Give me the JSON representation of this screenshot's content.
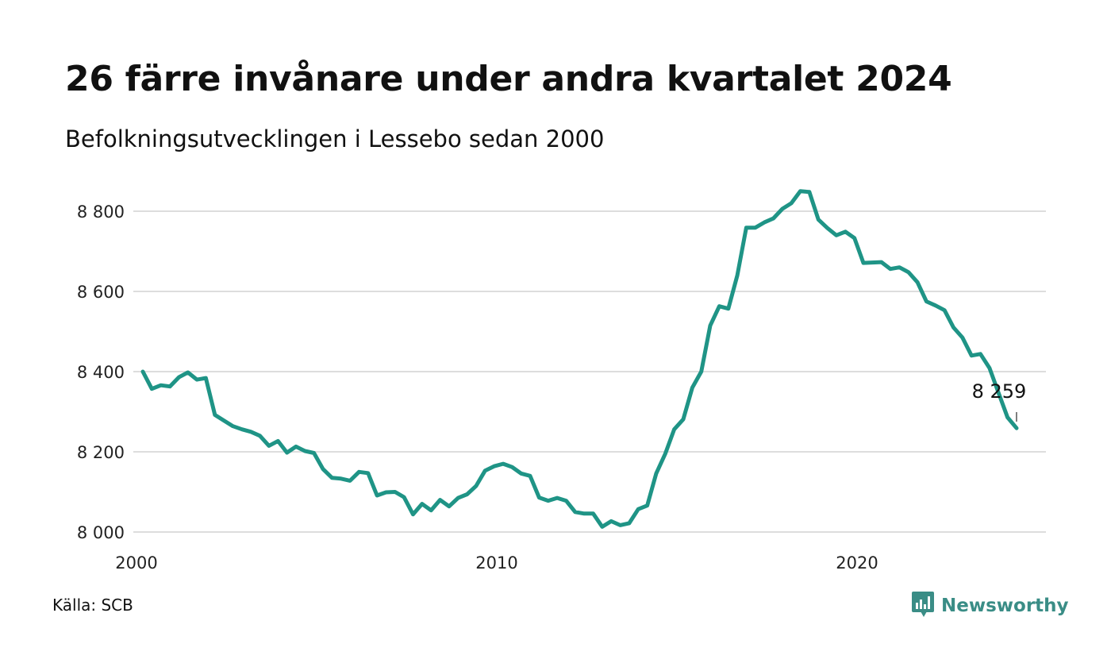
{
  "header": {
    "title": "26 färre invånare under andra kvartalet 2024",
    "subtitle": "Befolkningsutvecklingen i Lessebo sedan 2000"
  },
  "footer": {
    "source": "Källa: SCB",
    "brand": "Newsworthy",
    "brand_icon": "bar-chart-speech-icon"
  },
  "colors": {
    "line": "#1f9486",
    "grid": "#dddddd",
    "brand": "#3a8d86"
  },
  "chart_data": {
    "type": "line",
    "title": "26 färre invånare under andra kvartalet 2024",
    "subtitle": "Befolkningsutvecklingen i Lessebo sedan 2000",
    "xlabel": "",
    "ylabel": "",
    "x_ticks": [
      "2000",
      "2010",
      "2020"
    ],
    "y_ticks": [
      "8 000",
      "8 200",
      "8 400",
      "8 600",
      "8 800"
    ],
    "ylim": [
      8000,
      8850
    ],
    "xlim": [
      2000.0,
      2024.25
    ],
    "grid": true,
    "annotation": {
      "x": 2024.25,
      "value": 8259,
      "label": "8 259"
    },
    "x": [
      2000.0,
      2000.25,
      2000.5,
      2000.75,
      2001.0,
      2001.25,
      2001.5,
      2001.75,
      2002.0,
      2002.25,
      2002.5,
      2002.75,
      2003.0,
      2003.25,
      2003.5,
      2003.75,
      2004.0,
      2004.25,
      2004.5,
      2004.75,
      2005.0,
      2005.25,
      2005.5,
      2005.75,
      2006.0,
      2006.25,
      2006.5,
      2006.75,
      2007.0,
      2007.25,
      2007.5,
      2007.75,
      2008.0,
      2008.25,
      2008.5,
      2008.75,
      2009.0,
      2009.25,
      2009.5,
      2009.75,
      2010.0,
      2010.25,
      2010.5,
      2010.75,
      2011.0,
      2011.25,
      2011.5,
      2011.75,
      2012.0,
      2012.25,
      2012.5,
      2012.75,
      2013.0,
      2013.25,
      2013.5,
      2013.75,
      2014.0,
      2014.25,
      2014.5,
      2014.75,
      2015.0,
      2015.25,
      2015.5,
      2015.75,
      2016.0,
      2016.25,
      2016.5,
      2016.75,
      2017.0,
      2017.25,
      2017.5,
      2017.75,
      2018.0,
      2018.25,
      2018.5,
      2018.75,
      2019.0,
      2019.25,
      2019.5,
      2019.75,
      2020.0,
      2020.25,
      2020.5,
      2020.75,
      2021.0,
      2021.25,
      2021.5,
      2021.75,
      2022.0,
      2022.25,
      2022.5,
      2022.75,
      2023.0,
      2023.25,
      2023.5,
      2023.75,
      2024.0,
      2024.25
    ],
    "series": [
      {
        "values": [
          8400,
          8357,
          8366,
          8363,
          8386,
          8398,
          8380,
          8384,
          8292,
          8278,
          8264,
          8256,
          8250,
          8240,
          8215,
          8227,
          8198,
          8213,
          8202,
          8197,
          8157,
          8135,
          8133,
          8128,
          8150,
          8147,
          8091,
          8099,
          8100,
          8087,
          8044,
          8070,
          8054,
          8080,
          8064,
          8085,
          8094,
          8115,
          8153,
          8164,
          8170,
          8162,
          8146,
          8140,
          8086,
          8078,
          8085,
          8078,
          8050,
          8046,
          8046,
          8013,
          8027,
          8017,
          8022,
          8057,
          8066,
          8146,
          8195,
          8256,
          8281,
          8360,
          8400,
          8515,
          8563,
          8557,
          8640,
          8759,
          8759,
          8772,
          8782,
          8806,
          8820,
          8850,
          8848,
          8779,
          8758,
          8740,
          8749,
          8733,
          8671,
          8672,
          8673,
          8656,
          8660,
          8648,
          8623,
          8575,
          8565,
          8553,
          8510,
          8485,
          8440,
          8444,
          8409,
          8347,
          8286,
          8259
        ]
      }
    ]
  }
}
